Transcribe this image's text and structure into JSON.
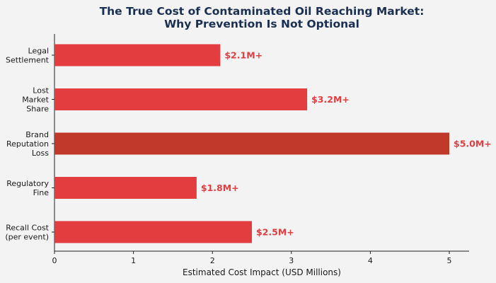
{
  "chart_data": {
    "type": "bar",
    "orientation": "horizontal",
    "title_lines": [
      "The True Cost of Contaminated Oil Reaching Market:",
      "Why Prevention Is Not Optional"
    ],
    "xlabel": "Estimated Cost Impact (USD Millions)",
    "ylabel": "",
    "xlim": [
      0,
      5.25
    ],
    "xticks": [
      0,
      1,
      2,
      3,
      4,
      5
    ],
    "grid": false,
    "categories": [
      {
        "lines": [
          "Legal",
          "Settlement"
        ]
      },
      {
        "lines": [
          "Lost",
          "Market",
          "Share"
        ]
      },
      {
        "lines": [
          "Brand",
          "Reputation",
          "Loss"
        ]
      },
      {
        "lines": [
          "Regulatory",
          "Fine"
        ]
      },
      {
        "lines": [
          "Recall Cost",
          "(per event)"
        ]
      }
    ],
    "values": [
      2.1,
      3.2,
      5.0,
      1.8,
      2.5
    ],
    "data_labels": [
      "$2.1M+",
      "$3.2M+",
      "$5.0M+",
      "$1.8M+",
      "$2.5M+"
    ],
    "highlight_index": 2,
    "colors": {
      "bar": "#e43d40",
      "highlight_bar": "#c0392b",
      "label": "#e43d40",
      "title": "#1b2f52",
      "axis": "#222222"
    }
  }
}
